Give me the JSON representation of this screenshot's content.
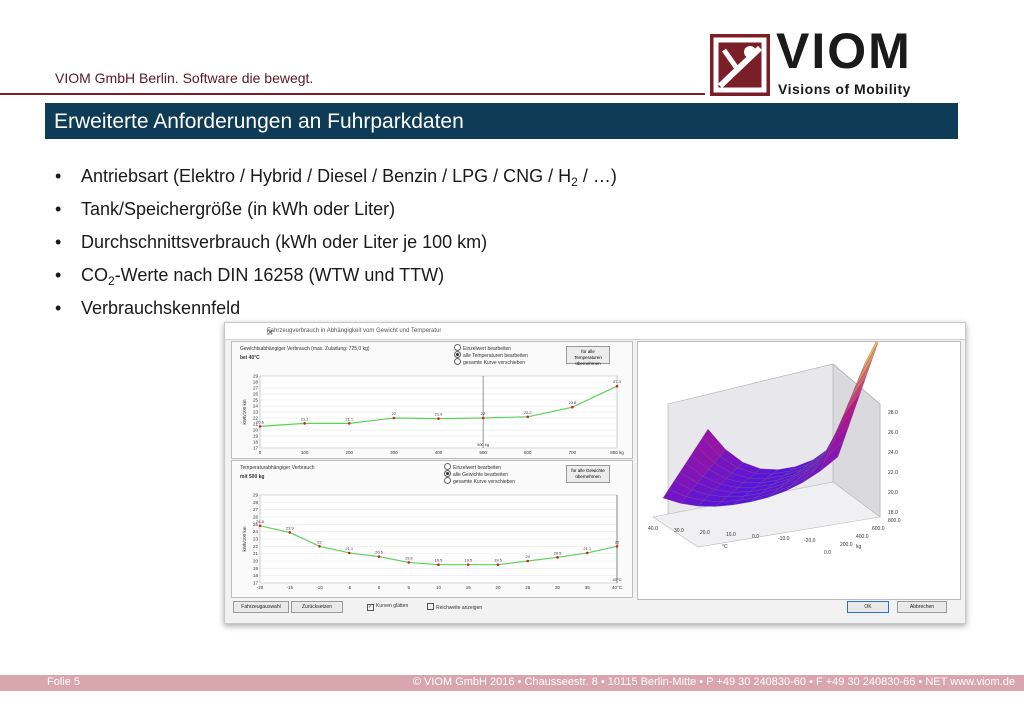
{
  "header": {
    "tagline": "VIOM GmbH Berlin. Software die bewegt.",
    "logo_word": "VIOM",
    "logo_sub": "Visions of Mobility"
  },
  "title": "Erweiterte Anforderungen an Fuhrparkdaten",
  "bullets": [
    {
      "pre": "Antriebsart (Elektro / Hybrid / Diesel / Benzin / LPG / CNG / H",
      "sub": "2",
      "post": " / …)"
    },
    {
      "pre": "Tank/Speichergröße (in kWh oder Liter)",
      "sub": "",
      "post": ""
    },
    {
      "pre": "Durchschnittsverbrauch (kWh oder Liter je 100 km)",
      "sub": "",
      "post": ""
    },
    {
      "pre": "CO",
      "sub": "2",
      "post": "-Werte nach DIN 16258 (WTW und TTW)"
    },
    {
      "pre": "Verbrauchskennfeld",
      "sub": "",
      "post": ""
    }
  ],
  "bullet_char": "•",
  "screenshot": {
    "window_title": "Fahrzeugverbrauch in Abhängigkeit vom Gewicht und Temperatur",
    "top_panel": {
      "caption": "Gewichtsabhängiger Verbrauch (max. Zuladung: 725,0 kg)",
      "sub_caption": "bei 40°C",
      "radios": [
        "Einzelwert bearbeiten",
        "alle Temperaturen bearbeiten",
        "gesamte Kurve verschieben"
      ],
      "radio_selected": 1,
      "apply_button": "für alle Temperaturen übernehmen",
      "y_label": "kWh/100 km",
      "y_ticks": [
        "29",
        "28",
        "27",
        "26",
        "25",
        "24",
        "23",
        "22",
        "21",
        "20",
        "19",
        "18",
        "17"
      ],
      "x_ticks": [
        "0",
        "100",
        "200",
        "300",
        "400",
        "500",
        "600",
        "700",
        "800 kg"
      ],
      "marker_label": "500 kg",
      "points": [
        [
          0,
          20.6
        ],
        [
          100,
          21.1
        ],
        [
          200,
          21.1
        ],
        [
          300,
          22
        ],
        [
          400,
          21.9
        ],
        [
          500,
          22
        ],
        [
          600,
          22.2
        ],
        [
          700,
          23.8
        ],
        [
          800,
          27.3
        ]
      ]
    },
    "bottom_panel": {
      "caption": "Temperaturabhängiger Verbrauch",
      "sub_caption": "mit 500 kg",
      "radios": [
        "Einzelwert bearbeiten",
        "alle Gewichte bearbeiten",
        "gesamte Kurve verschieben"
      ],
      "radio_selected": 1,
      "apply_button": "für alle Gewichte übernehmen",
      "y_label": "kWh/100 km",
      "y_ticks": [
        "29",
        "28",
        "27",
        "26",
        "25",
        "24",
        "23",
        "22",
        "21",
        "20",
        "19",
        "18",
        "17"
      ],
      "x_ticks": [
        "-20",
        "-15",
        "-10",
        "-5",
        "0",
        "5",
        "10",
        "15",
        "20",
        "25",
        "30",
        "35",
        "40°C"
      ],
      "marker_label": "40°C",
      "points": [
        [
          -20,
          24.8
        ],
        [
          -15,
          23.9
        ],
        [
          -10,
          22.0
        ],
        [
          -5,
          21.1
        ],
        [
          0,
          20.6
        ],
        [
          5,
          19.8
        ],
        [
          10,
          19.5
        ],
        [
          15,
          19.5
        ],
        [
          20,
          19.5
        ],
        [
          25,
          20
        ],
        [
          30,
          20.5
        ],
        [
          35,
          21.1
        ],
        [
          40,
          22
        ]
      ]
    },
    "bottom_bar": {
      "btn_vehicle": "Fahrzeugauswahl",
      "btn_reset": "Zurücksetzen",
      "chk_smooth": "Kurven glätten",
      "chk_range": "Reichweite anzeigen",
      "btn_ok": "OK",
      "btn_cancel": "Abbrechen"
    },
    "surface": {
      "z_ticks": [
        "28.0",
        "26.0",
        "24.0",
        "22.0",
        "20.0",
        "18.0"
      ],
      "temp_ticks": [
        "40.0",
        "30.0",
        "20.0",
        "10.0",
        "0.0",
        "-10.0",
        "-20.0"
      ],
      "temp_unit": "°C",
      "weight_ticks": [
        "800.0",
        "600.0",
        "400.0",
        "200.0",
        "0.0"
      ],
      "weight_unit": "kg"
    }
  },
  "footer": {
    "slide": "Folie 5",
    "copyright": "© VIOM GmbH 2016  •  Chausseestr. 8  •  10115 Berlin-Mitte  • P +49 30 240830-60 • F +49 30 240830-66 • NET www.viom.de"
  },
  "colors": {
    "title_bar": "#0e3b56",
    "brand_red": "#7a1e27",
    "footer_bar": "#d9a6ad",
    "curve_green": "#5bd35b",
    "point_red": "#d62020"
  }
}
